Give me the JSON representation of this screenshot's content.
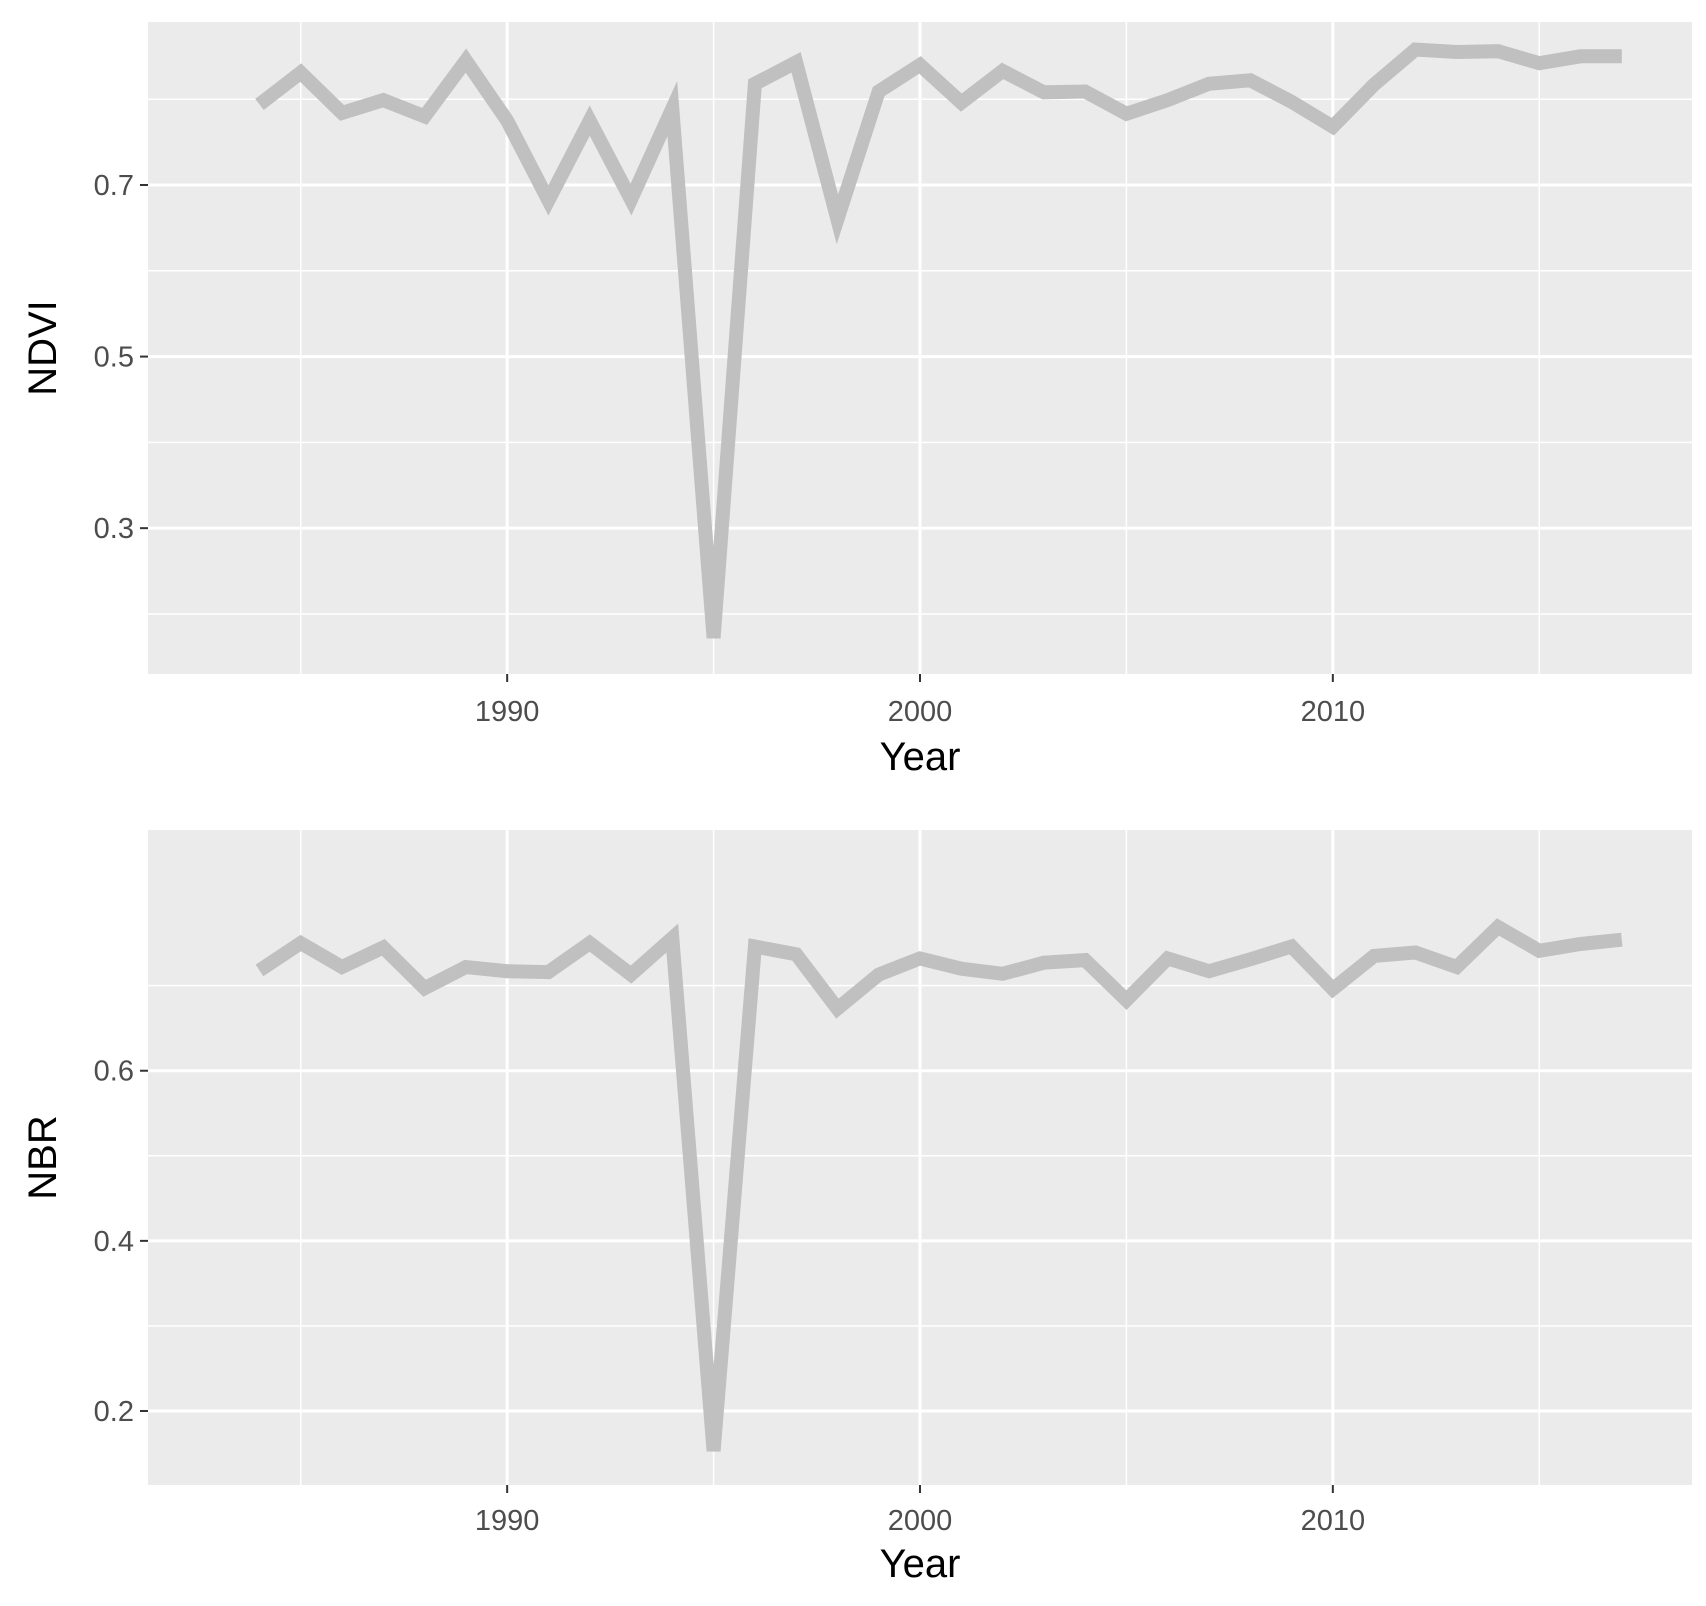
{
  "colors": {
    "panel_background": "#ebebeb",
    "grid_line": "#ffffff",
    "series_line": "#c0c0c0",
    "tick_text": "#4d4d4d",
    "title_text": "#000000"
  },
  "chart_data": [
    {
      "type": "line",
      "xlabel": "Year",
      "ylabel": "NDVI",
      "xlim": [
        1981.3,
        2018.7
      ],
      "ylim": [
        0.13,
        0.89
      ],
      "xticks": [
        1990,
        2000,
        2010
      ],
      "xtick_labels": [
        "1990",
        "2000",
        "2010"
      ],
      "yticks": [
        0.3,
        0.5,
        0.7
      ],
      "ytick_labels": [
        "0.3",
        "0.5",
        "0.7"
      ],
      "grid": true,
      "series": [
        {
          "x": [
            1984,
            1985,
            1986,
            1987,
            1988,
            1989,
            1990,
            1991,
            1992,
            1993,
            1994,
            1995,
            1996,
            1997,
            1998,
            1999,
            2000,
            2001,
            2002,
            2003,
            2004,
            2005,
            2006,
            2007,
            2008,
            2009,
            2010,
            2011,
            2012,
            2013,
            2014,
            2015,
            2016,
            2017
          ],
          "values": [
            0.794,
            0.831,
            0.784,
            0.799,
            0.78,
            0.845,
            0.775,
            0.682,
            0.775,
            0.683,
            0.789,
            0.172,
            0.818,
            0.843,
            0.66,
            0.809,
            0.84,
            0.796,
            0.833,
            0.808,
            0.809,
            0.783,
            0.799,
            0.818,
            0.822,
            0.797,
            0.768,
            0.817,
            0.858,
            0.855,
            0.856,
            0.842,
            0.85,
            0.85
          ]
        }
      ]
    },
    {
      "type": "line",
      "xlabel": "Year",
      "ylabel": "NBR",
      "xlim": [
        1981.3,
        2018.7
      ],
      "ylim": [
        0.113,
        0.883
      ],
      "xticks": [
        1990,
        2000,
        2010
      ],
      "xtick_labels": [
        "1990",
        "2000",
        "2010"
      ],
      "yticks": [
        0.2,
        0.4,
        0.6
      ],
      "ytick_labels": [
        "0.2",
        "0.4",
        "0.6"
      ],
      "grid": true,
      "series": [
        {
          "x": [
            1984,
            1985,
            1986,
            1987,
            1988,
            1989,
            1990,
            1991,
            1992,
            1993,
            1994,
            1995,
            1996,
            1997,
            1998,
            1999,
            2000,
            2001,
            2002,
            2003,
            2004,
            2005,
            2006,
            2007,
            2008,
            2009,
            2010,
            2011,
            2012,
            2013,
            2014,
            2015,
            2016,
            2017
          ],
          "values": [
            0.718,
            0.75,
            0.722,
            0.745,
            0.697,
            0.722,
            0.717,
            0.716,
            0.75,
            0.713,
            0.756,
            0.153,
            0.746,
            0.737,
            0.673,
            0.713,
            0.732,
            0.72,
            0.714,
            0.727,
            0.73,
            0.683,
            0.732,
            0.717,
            0.731,
            0.746,
            0.696,
            0.735,
            0.739,
            0.722,
            0.769,
            0.741,
            0.749,
            0.754
          ]
        }
      ]
    }
  ]
}
